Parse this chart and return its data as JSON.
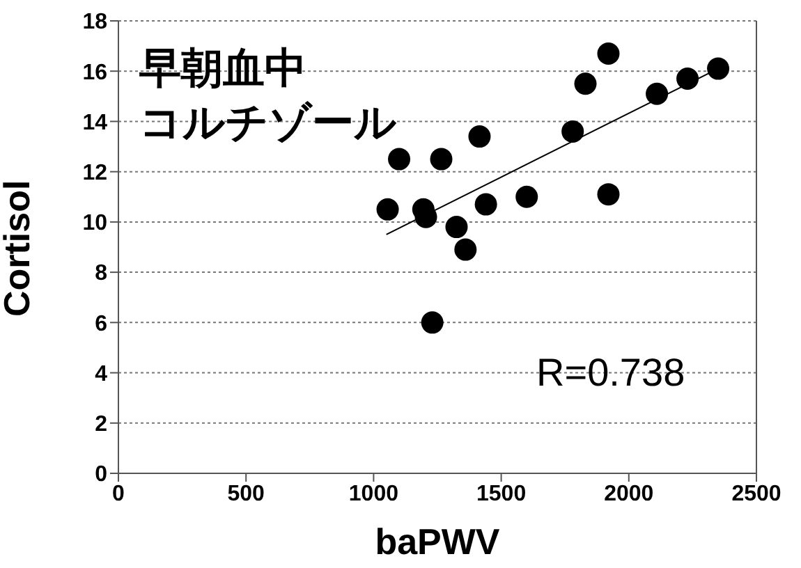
{
  "chart_data": {
    "type": "scatter",
    "xlabel": "baPWV",
    "ylabel": "Cortisol",
    "annotations": [
      "早朝血中",
      "コルチゾール",
      "R=0.738"
    ],
    "xlim": [
      0,
      2500
    ],
    "xticks": [
      0,
      500,
      1000,
      1500,
      2000,
      2500
    ],
    "ylim": [
      0,
      18
    ],
    "yticks": [
      0,
      2,
      4,
      6,
      8,
      10,
      12,
      14,
      16,
      18
    ],
    "grid": "y",
    "marker": "circle",
    "legend": false,
    "series": [
      {
        "color": "#000000",
        "x": [
          1055,
          1100,
          1195,
          1205,
          1230,
          1265,
          1325,
          1360,
          1415,
          1440,
          1600,
          1780,
          1830,
          1920,
          1920,
          2110,
          2230,
          2350
        ],
        "values": [
          10.5,
          12.5,
          10.5,
          10.2,
          6.0,
          12.5,
          9.8,
          8.9,
          13.4,
          10.7,
          11.0,
          13.6,
          15.5,
          16.7,
          11.1,
          15.1,
          15.7,
          16.1
        ]
      },
      {
        "type": "line",
        "color": "#000000",
        "x": [
          1050,
          2350
        ],
        "values": [
          9.5,
          16.1
        ],
        "marker": "none"
      }
    ]
  }
}
